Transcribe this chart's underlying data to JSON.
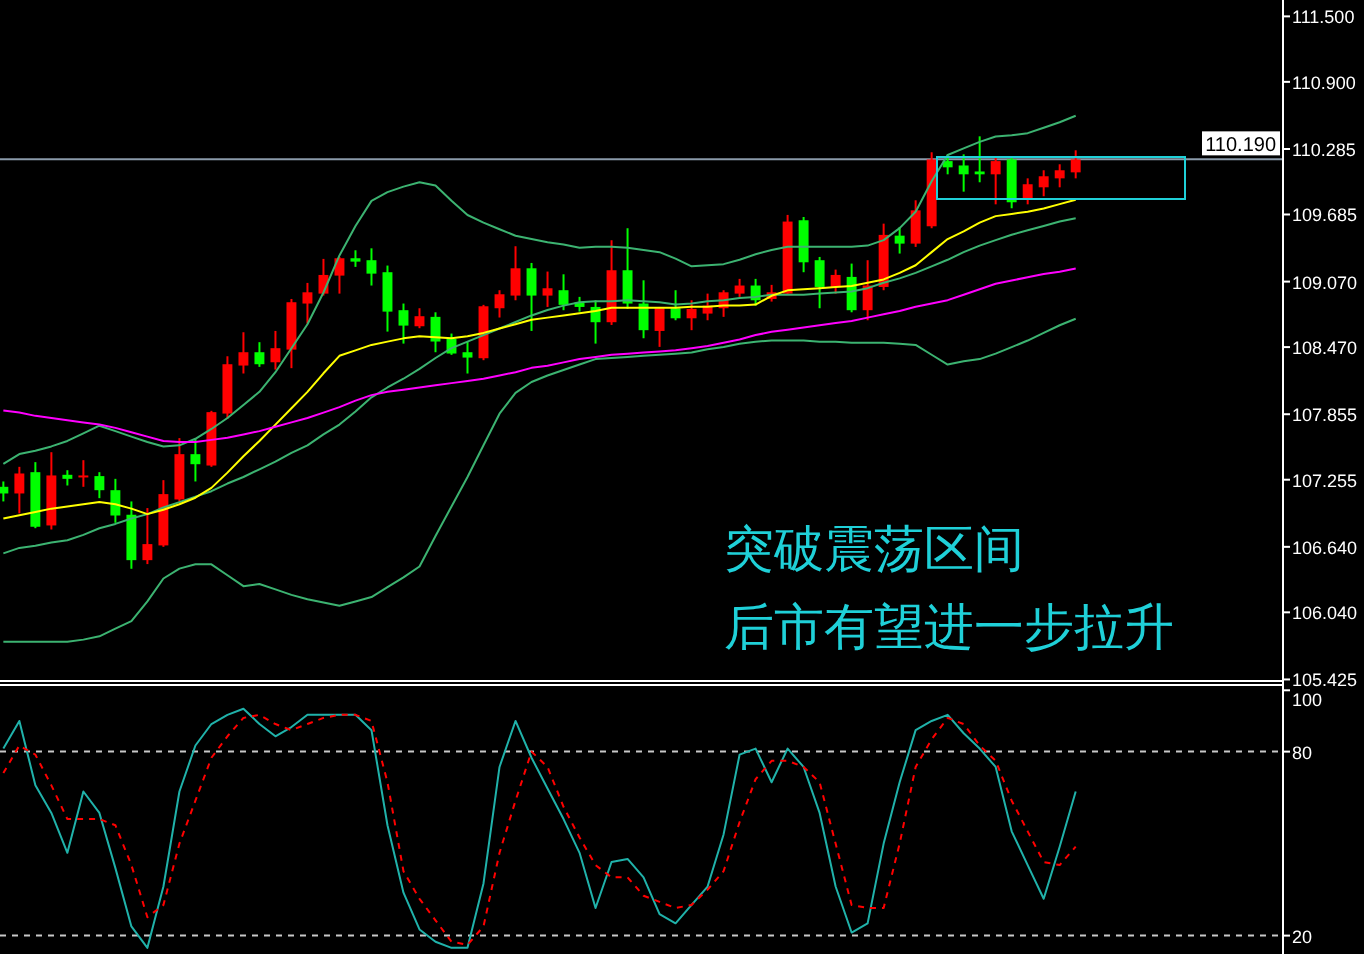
{
  "chart_data": [
    {
      "type": "candlestick",
      "tick_labels": "y",
      "categories": [
        null,
        null,
        null,
        null,
        null,
        null,
        null,
        null,
        null,
        null,
        null,
        null,
        null,
        null,
        null,
        null,
        null,
        null,
        null,
        null,
        null,
        null,
        null,
        null,
        null,
        null,
        null,
        null,
        null,
        null,
        null,
        null,
        null,
        null,
        null,
        null,
        null,
        null,
        null,
        null,
        null,
        null,
        null,
        null,
        null,
        null,
        null,
        null,
        null,
        null,
        null,
        null,
        null,
        null,
        null,
        null,
        null,
        null,
        null,
        null,
        null,
        null,
        null,
        null,
        null,
        null,
        null,
        null
      ],
      "ohlc": [
        [
          107.19,
          107.239,
          107.056,
          107.129
        ],
        [
          107.129,
          107.373,
          106.946,
          107.312
        ],
        [
          107.324,
          107.416,
          106.811,
          106.824
        ],
        [
          106.836,
          107.507,
          106.799,
          107.294
        ],
        [
          107.3,
          107.342,
          107.202,
          107.263
        ],
        [
          107.281,
          107.434,
          107.19,
          107.294
        ],
        [
          107.288,
          107.324,
          107.086,
          107.159
        ],
        [
          107.159,
          107.263,
          106.86,
          106.927
        ],
        [
          106.934,
          107.056,
          106.439,
          106.518
        ],
        [
          106.518,
          106.995,
          106.482,
          106.665
        ],
        [
          106.653,
          107.251,
          106.64,
          107.123
        ],
        [
          107.074,
          107.636,
          107.056,
          107.489
        ],
        [
          107.489,
          107.629,
          107.239,
          107.397
        ],
        [
          107.385,
          107.886,
          107.373,
          107.874
        ],
        [
          107.861,
          108.386,
          107.813,
          108.313
        ],
        [
          108.301,
          108.606,
          108.228,
          108.423
        ],
        [
          108.423,
          108.515,
          108.289,
          108.313
        ],
        [
          108.331,
          108.618,
          108.264,
          108.46
        ],
        [
          108.447,
          108.911,
          108.277,
          108.881
        ],
        [
          108.869,
          109.058,
          108.686,
          108.972
        ],
        [
          108.96,
          109.278,
          108.942,
          109.131
        ],
        [
          109.125,
          109.296,
          108.96,
          109.284
        ],
        [
          109.284,
          109.357,
          109.205,
          109.253
        ],
        [
          109.266,
          109.375,
          109.034,
          109.143
        ],
        [
          109.156,
          109.217,
          108.612,
          108.795
        ],
        [
          108.808,
          108.869,
          108.502,
          108.667
        ],
        [
          108.661,
          108.826,
          108.643,
          108.753
        ],
        [
          108.747,
          108.789,
          108.423,
          108.521
        ],
        [
          108.545,
          108.594,
          108.399,
          108.411
        ],
        [
          108.423,
          108.521,
          108.228,
          108.374
        ],
        [
          108.368,
          108.857,
          108.35,
          108.844
        ],
        [
          108.826,
          108.991,
          108.741,
          108.954
        ],
        [
          108.942,
          109.394,
          108.899,
          109.192
        ],
        [
          109.192,
          109.241,
          108.618,
          108.942
        ],
        [
          108.942,
          109.162,
          108.838,
          109.009
        ],
        [
          108.991,
          109.137,
          108.808,
          108.857
        ],
        [
          108.881,
          108.93,
          108.795,
          108.838
        ],
        [
          108.838,
          108.899,
          108.502,
          108.698
        ],
        [
          108.698,
          109.449,
          108.673,
          109.174
        ],
        [
          109.174,
          109.559,
          108.82,
          108.869
        ],
        [
          108.869,
          109.082,
          108.551,
          108.625
        ],
        [
          108.618,
          108.838,
          108.472,
          108.826
        ],
        [
          108.826,
          108.991,
          108.716,
          108.734
        ],
        [
          108.734,
          108.899,
          108.625,
          108.82
        ],
        [
          108.777,
          108.96,
          108.716,
          108.85
        ],
        [
          108.826,
          108.991,
          108.747,
          108.972
        ],
        [
          108.96,
          109.095,
          108.93,
          109.034
        ],
        [
          109.034,
          109.095,
          108.85,
          108.899
        ],
        [
          108.911,
          109.04,
          108.887,
          108.972
        ],
        [
          108.96,
          109.681,
          108.948,
          109.62
        ],
        [
          109.632,
          109.662,
          109.156,
          109.247
        ],
        [
          109.266,
          109.296,
          108.826,
          109.021
        ],
        [
          109.021,
          109.18,
          108.96,
          109.131
        ],
        [
          109.113,
          109.235,
          108.789,
          108.808
        ],
        [
          108.808,
          109.266,
          108.716,
          109.034
        ],
        [
          109.021,
          109.601,
          108.991,
          109.498
        ],
        [
          109.491,
          109.571,
          109.327,
          109.418
        ],
        [
          109.418,
          109.815,
          109.388,
          109.723
        ],
        [
          109.577,
          110.255,
          109.559,
          110.189
        ],
        [
          110.174,
          110.236,
          110.053,
          110.117
        ],
        [
          110.134,
          110.236,
          109.894,
          110.053
        ],
        [
          110.079,
          110.401,
          109.98,
          110.053
        ],
        [
          110.053,
          110.218,
          109.778,
          110.174
        ],
        [
          110.189,
          110.218,
          109.742,
          109.797
        ],
        [
          109.833,
          110.016,
          109.778,
          109.962
        ],
        [
          109.934,
          110.09,
          109.852,
          110.035
        ],
        [
          110.016,
          110.145,
          109.934,
          110.09
        ],
        [
          110.071,
          110.273,
          110.016,
          110.189
        ]
      ],
      "colors": [
        "#00ff00",
        "#ff0000",
        "#00ff00",
        "#ff0000",
        "#00ff00",
        "#ff0000",
        "#00ff00",
        "#00ff00",
        "#00ff00",
        "#ff0000",
        "#ff0000",
        "#ff0000",
        "#00ff00",
        "#ff0000",
        "#ff0000",
        "#ff0000",
        "#00ff00",
        "#ff0000",
        "#ff0000",
        "#ff0000",
        "#ff0000",
        "#ff0000",
        "#00ff00",
        "#00ff00",
        "#00ff00",
        "#00ff00",
        "#ff0000",
        "#00ff00",
        "#00ff00",
        "#00ff00",
        "#ff0000",
        "#ff0000",
        "#ff0000",
        "#00ff00",
        "#ff0000",
        "#00ff00",
        "#00ff00",
        "#00ff00",
        "#ff0000",
        "#00ff00",
        "#00ff00",
        "#ff0000",
        "#00ff00",
        "#ff0000",
        "#ff0000",
        "#ff0000",
        "#ff0000",
        "#00ff00",
        "#ff0000",
        "#ff0000",
        "#00ff00",
        "#00ff00",
        "#ff0000",
        "#00ff00",
        "#ff0000",
        "#ff0000",
        "#00ff00",
        "#ff0000",
        "#ff0000",
        "#00ff00",
        "#00ff00",
        "#00ff00",
        "#ff0000",
        "#00ff00",
        "#ff0000",
        "#ff0000",
        "#ff0000",
        "#ff0000"
      ],
      "series": [
        {
          "type": "line",
          "color": "#3cb371",
          "values": [
            107.4,
            107.49,
            107.52,
            107.56,
            107.61,
            107.68,
            107.75,
            107.7,
            107.65,
            107.6,
            107.56,
            107.57,
            107.63,
            107.72,
            107.82,
            107.94,
            108.06,
            108.24,
            108.46,
            108.68,
            108.97,
            109.31,
            109.58,
            109.81,
            109.89,
            109.94,
            109.98,
            109.95,
            109.81,
            109.68,
            109.61,
            109.55,
            109.49,
            109.46,
            109.43,
            109.41,
            109.38,
            109.39,
            109.39,
            109.38,
            109.36,
            109.34,
            109.28,
            109.21,
            109.22,
            109.23,
            109.27,
            109.32,
            109.36,
            109.39,
            109.39,
            109.39,
            109.39,
            109.39,
            109.4,
            109.45,
            109.56,
            109.71,
            109.99,
            110.23,
            110.29,
            110.35,
            110.4,
            110.41,
            110.43,
            110.48,
            110.53,
            110.59
          ]
        },
        {
          "type": "line",
          "color": "#3cb371",
          "values": [
            106.58,
            106.63,
            106.65,
            106.68,
            106.7,
            106.75,
            106.81,
            106.85,
            106.9,
            106.94,
            107.0,
            107.05,
            107.1,
            107.15,
            107.22,
            107.28,
            107.35,
            107.42,
            107.5,
            107.57,
            107.67,
            107.76,
            107.88,
            108.01,
            108.1,
            108.18,
            108.27,
            108.37,
            108.46,
            108.52,
            108.58,
            108.64,
            108.7,
            108.76,
            108.81,
            108.85,
            108.88,
            108.89,
            108.89,
            108.9,
            108.89,
            108.88,
            108.86,
            108.87,
            108.89,
            108.9,
            108.92,
            108.93,
            108.95,
            108.95,
            108.95,
            108.96,
            108.97,
            108.98,
            109.01,
            109.06,
            109.1,
            109.15,
            109.21,
            109.27,
            109.34,
            109.4,
            109.45,
            109.5,
            109.54,
            109.58,
            109.62,
            109.65
          ]
        },
        {
          "type": "line",
          "color": "#3cb371",
          "values": [
            105.77,
            105.77,
            105.77,
            105.77,
            105.77,
            105.79,
            105.82,
            105.89,
            105.96,
            106.14,
            106.35,
            106.44,
            106.48,
            106.48,
            106.38,
            106.28,
            106.3,
            106.25,
            106.2,
            106.16,
            106.13,
            106.1,
            106.14,
            106.18,
            106.27,
            106.36,
            106.46,
            106.74,
            107.01,
            107.28,
            107.57,
            107.86,
            108.05,
            108.15,
            108.21,
            108.26,
            108.31,
            108.36,
            108.37,
            108.38,
            108.39,
            108.4,
            108.41,
            108.42,
            108.45,
            108.47,
            108.5,
            108.52,
            108.53,
            108.53,
            108.53,
            108.52,
            108.52,
            108.51,
            108.51,
            108.51,
            108.5,
            108.49,
            108.4,
            108.31,
            108.34,
            108.36,
            108.41,
            108.47,
            108.53,
            108.6,
            108.67,
            108.73
          ]
        },
        {
          "type": "line",
          "color": "#ffff00",
          "values": [
            106.9,
            106.93,
            106.96,
            106.99,
            107.01,
            107.03,
            107.05,
            107.03,
            106.99,
            106.94,
            106.98,
            107.03,
            107.09,
            107.18,
            107.32,
            107.47,
            107.61,
            107.76,
            107.91,
            108.06,
            108.23,
            108.39,
            108.44,
            108.49,
            108.52,
            108.55,
            108.57,
            108.56,
            108.55,
            108.57,
            108.6,
            108.64,
            108.68,
            108.72,
            108.74,
            108.76,
            108.78,
            108.8,
            108.83,
            108.83,
            108.83,
            108.83,
            108.83,
            108.84,
            108.84,
            108.85,
            108.85,
            108.86,
            108.94,
            108.99,
            109.0,
            109.01,
            109.02,
            109.03,
            109.06,
            109.09,
            109.15,
            109.22,
            109.34,
            109.46,
            109.53,
            109.61,
            109.67,
            109.69,
            109.71,
            109.74,
            109.78,
            109.82
          ]
        },
        {
          "type": "line",
          "color": "#ff00ff",
          "values": [
            107.89,
            107.87,
            107.84,
            107.82,
            107.8,
            107.78,
            107.76,
            107.73,
            107.69,
            107.65,
            107.61,
            107.6,
            107.6,
            107.62,
            107.64,
            107.67,
            107.7,
            107.74,
            107.78,
            107.82,
            107.87,
            107.92,
            107.98,
            108.03,
            108.06,
            108.08,
            108.1,
            108.12,
            108.14,
            108.16,
            108.18,
            108.21,
            108.24,
            108.28,
            108.3,
            108.33,
            108.36,
            108.38,
            108.4,
            108.41,
            108.42,
            108.43,
            108.44,
            108.46,
            108.48,
            108.51,
            108.54,
            108.58,
            108.61,
            108.63,
            108.65,
            108.67,
            108.69,
            108.71,
            108.74,
            108.77,
            108.8,
            108.84,
            108.87,
            108.9,
            108.95,
            109.0,
            109.05,
            109.08,
            109.11,
            109.14,
            109.16,
            109.19
          ]
        }
      ],
      "ylim": [
        105.42,
        111.65
      ],
      "yticks": [
        {
          "value": 111.5,
          "label": "111.500"
        },
        {
          "value": 110.9,
          "label": "110.900"
        },
        {
          "value": 110.285,
          "label": "110.285"
        },
        {
          "value": 109.685,
          "label": "109.685"
        },
        {
          "value": 109.07,
          "label": "109.070"
        },
        {
          "value": 108.47,
          "label": "108.470"
        },
        {
          "value": 107.855,
          "label": "107.855"
        },
        {
          "value": 107.255,
          "label": "107.255"
        },
        {
          "value": 106.64,
          "label": "106.640"
        },
        {
          "value": 106.04,
          "label": "106.040"
        },
        {
          "value": 105.425,
          "label": "105.425"
        }
      ],
      "ref_lines": [
        {
          "axis": "y",
          "value": 110.19,
          "label": "110.190",
          "color": "#8a9aaa"
        }
      ],
      "annotations": [
        "突破震荡区间",
        "后市有望进一步拉升"
      ]
    },
    {
      "type": "line",
      "tick_labels": "y",
      "categories": [
        null,
        null,
        null,
        null,
        null,
        null,
        null,
        null,
        null,
        null,
        null,
        null,
        null,
        null,
        null,
        null,
        null,
        null,
        null,
        null,
        null,
        null,
        null,
        null,
        null,
        null,
        null,
        null,
        null,
        null,
        null,
        null,
        null,
        null,
        null,
        null,
        null,
        null,
        null,
        null,
        null,
        null,
        null,
        null,
        null,
        null,
        null,
        null,
        null,
        null,
        null,
        null,
        null,
        null,
        null,
        null,
        null,
        null,
        null,
        null,
        null,
        null,
        null,
        null,
        null,
        null,
        null,
        null
      ],
      "series": [
        {
          "color": "#20b2aa",
          "line_style": "solid",
          "values": [
            81,
            90,
            69,
            60,
            47,
            67,
            60,
            42,
            23,
            16,
            36,
            67,
            82,
            89,
            92,
            94,
            89,
            85,
            88,
            92,
            92,
            92,
            92,
            87,
            56,
            34,
            22,
            18,
            16,
            16,
            37,
            75,
            90,
            78,
            68,
            58,
            47,
            29,
            44,
            45,
            39,
            27,
            24,
            30,
            36,
            53,
            79,
            81,
            70,
            81,
            75,
            60,
            36,
            21,
            24,
            50,
            70,
            87,
            90,
            92,
            86,
            81,
            75,
            54,
            43,
            32,
            49,
            67
          ]
        },
        {
          "color": "#ff0000",
          "line_style": "dashed",
          "values": [
            73,
            82,
            79,
            69,
            58,
            58,
            58,
            56,
            43,
            26,
            30,
            50,
            64,
            78,
            85,
            91,
            92,
            89,
            87,
            89,
            91,
            92,
            92,
            90,
            70,
            41,
            32,
            25,
            18,
            17,
            23,
            47,
            64,
            80,
            75,
            62,
            52,
            43,
            39,
            39,
            33,
            31,
            29,
            30,
            35,
            41,
            57,
            71,
            77,
            77,
            75,
            70,
            50,
            30,
            29,
            29,
            50,
            75,
            84,
            91,
            89,
            82,
            77,
            64,
            54,
            44,
            43,
            49
          ]
        }
      ],
      "ylim": [
        14,
        101.4
      ],
      "yticks": [
        100,
        80,
        20
      ],
      "ref_lines": [
        {
          "axis": "y",
          "value": 80,
          "color": "#c8c8c8",
          "line_style": "dashed"
        },
        {
          "axis": "y",
          "value": 20,
          "color": "#c8c8c8",
          "line_style": "dashed"
        }
      ]
    }
  ]
}
